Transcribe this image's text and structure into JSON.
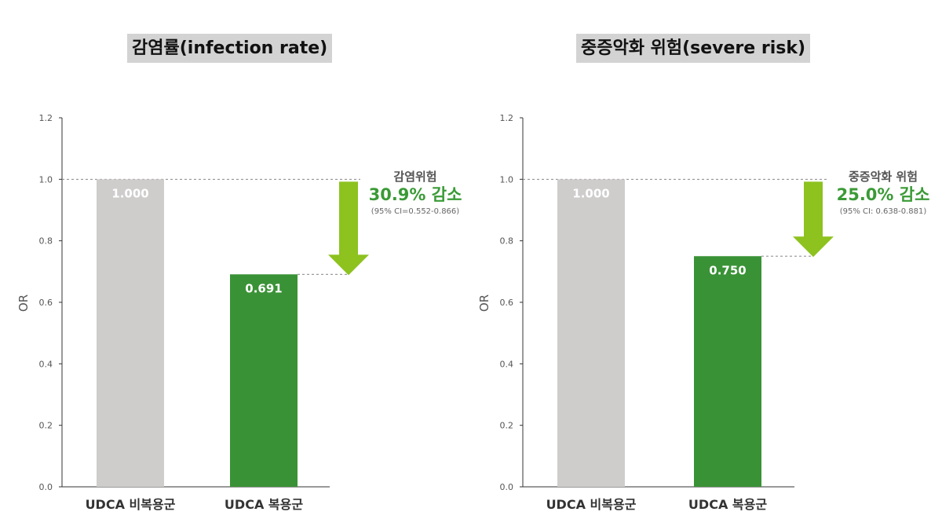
{
  "colors": {
    "reference_bar": "#cfcccc",
    "treated_bar": "#3a9236",
    "arrow": "#8dc21f",
    "accent_text": "#3a9a36"
  },
  "icons": {
    "annotation_arrow": "down-arrow-icon"
  },
  "chart_data": [
    {
      "type": "bar",
      "title": "감염률(infection rate)",
      "ylabel": "OR",
      "xlabel": "",
      "ylim": [
        0,
        1.2
      ],
      "yticks": [
        "0.0",
        "0.2",
        "0.4",
        "0.6",
        "0.8",
        "1.0",
        "1.2"
      ],
      "grid": false,
      "categories": [
        "UDCA 비복용군",
        "UDCA 복용군"
      ],
      "values": [
        1.0,
        0.691
      ],
      "value_labels": [
        "1.000",
        "0.691"
      ],
      "annotation": {
        "title": "감염위험",
        "main": "30.9% 감소",
        "ci": "(95% CI=0.552-0.866)"
      }
    },
    {
      "type": "bar",
      "title": "중증악화 위험(severe risk)",
      "ylabel": "OR",
      "xlabel": "",
      "ylim": [
        0,
        1.2
      ],
      "yticks": [
        "0.0",
        "0.2",
        "0.4",
        "0.6",
        "0.8",
        "1.0",
        "1.2"
      ],
      "grid": false,
      "categories": [
        "UDCA 비복용군",
        "UDCA 복용군"
      ],
      "values": [
        1.0,
        0.75
      ],
      "value_labels": [
        "1.000",
        "0.750"
      ],
      "annotation": {
        "title": "중증악화 위험",
        "main": "25.0% 감소",
        "ci": "(95% CI: 0.638-0.881)"
      }
    }
  ]
}
